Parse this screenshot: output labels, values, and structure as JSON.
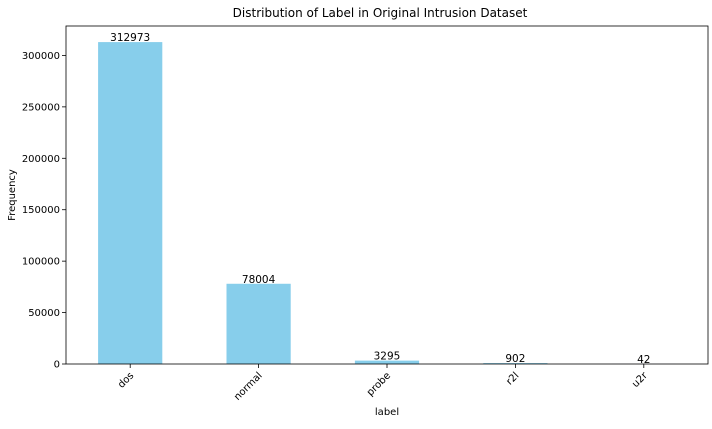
{
  "chart_data": {
    "type": "bar",
    "title": "Distribution of Label in Original Intrusion Dataset",
    "xlabel": "label",
    "ylabel": "Frequency",
    "categories": [
      "dos",
      "normal",
      "probe",
      "r2l",
      "u2r"
    ],
    "values": [
      312973,
      78004,
      3295,
      902,
      42
    ],
    "data_labels": [
      "312973",
      "78004",
      "3295",
      "902",
      "42"
    ],
    "y_ticks": [
      0,
      50000,
      100000,
      150000,
      200000,
      250000,
      300000
    ],
    "ylim": [
      0,
      328622
    ],
    "grid": false,
    "legend": "none",
    "bar_color": "#87ceeb"
  }
}
